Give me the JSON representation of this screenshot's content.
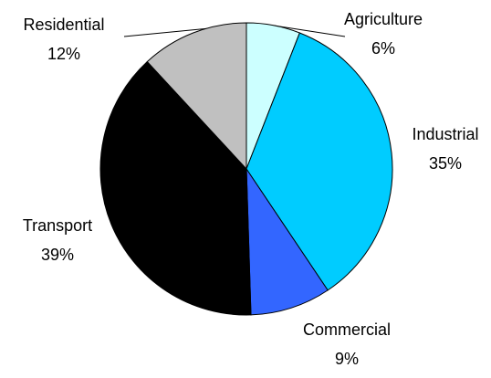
{
  "chart_data": {
    "type": "pie",
    "categories": [
      "Agriculture",
      "Industrial",
      "Commercial",
      "Transport",
      "Residential"
    ],
    "values": [
      6,
      35,
      9,
      39,
      12
    ],
    "value_labels": [
      "6%",
      "35%",
      "9%",
      "39%",
      "12%"
    ],
    "colors": [
      "#ccffff",
      "#00ccff",
      "#3366ff",
      "#000000",
      "#c0c0c0"
    ]
  }
}
